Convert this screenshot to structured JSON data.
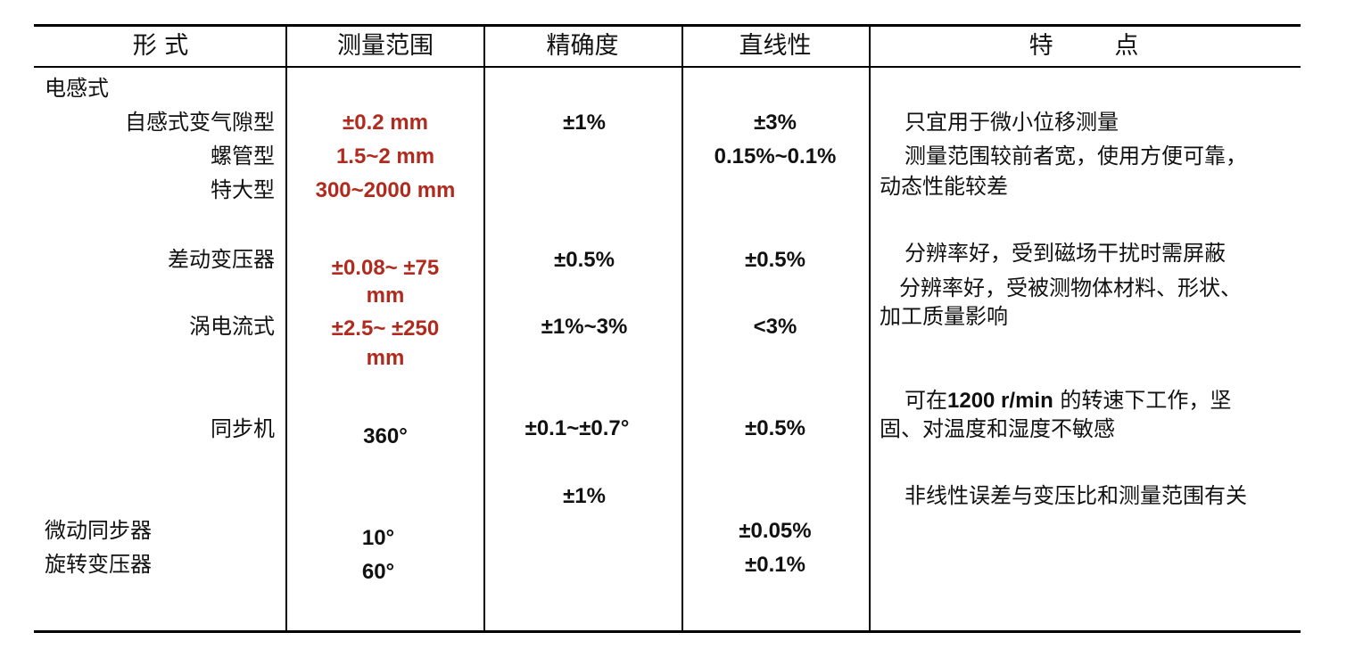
{
  "headers": [
    "形  式",
    "测量范围",
    "精确度",
    "直线性",
    "特        点"
  ],
  "groups": {
    "inductive": "电感式"
  },
  "rows": {
    "self_inductive": {
      "type": "自感式变气隙型",
      "range": "±0.2 mm",
      "accuracy": "±1%",
      "linearity": "±3%",
      "feature": "只宜用于微小位移测量"
    },
    "solenoid": {
      "type": "螺管型",
      "range": "1.5~2 mm",
      "linearity": "0.15%~0.1%",
      "feature_line1": "测量范围较前者宽，使用方便可靠，",
      "feature_line2": "动态性能较差"
    },
    "extra_large": {
      "type": "特大型",
      "range": "300~2000 mm"
    },
    "differential_transformer": {
      "type": "差动变压器",
      "range_line1": "±0.08~ ±75",
      "range_line2": "mm",
      "accuracy": "±0.5%",
      "linearity": "±0.5%",
      "feature": "分辨率好，受到磁场干扰时需屏蔽"
    },
    "eddy_current": {
      "type": "涡电流式",
      "range_line1": "±2.5~ ±250",
      "range_line2": "mm",
      "accuracy": "±1%~3%",
      "linearity": "<3%",
      "feature_line1": "分辨率好，受被测物体材料、形状、",
      "feature_line2": "加工质量影响"
    },
    "synchro": {
      "type": "同步机",
      "range": "360°",
      "accuracy": "±0.1~±0.7°",
      "linearity": "±0.5%",
      "feature_line1_pre": "可在",
      "feature_line1_bold": "1200 r/min",
      "feature_line1_post": " 的转速下工作，坚",
      "feature_line2": "固、对温度和湿度不敏感"
    },
    "micro_synchro": {
      "type": "微动同步器",
      "range": "10°",
      "accuracy": "±1%",
      "linearity": "±0.05%",
      "feature": "非线性误差与变压比和测量范围有关"
    },
    "resolver": {
      "type": "旋转变压器",
      "range": "60°",
      "linearity": "±0.1%"
    }
  },
  "colors": {
    "range_highlight": "#b22a1e",
    "text": "#111111",
    "rules": "#000000"
  }
}
